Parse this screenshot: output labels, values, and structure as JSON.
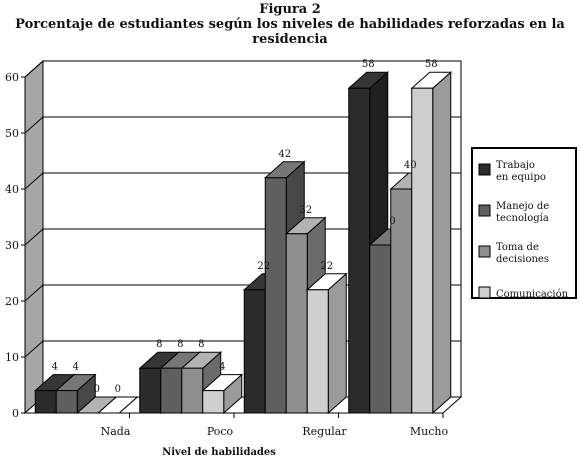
{
  "figure_label": "Figura 2",
  "chart_data": {
    "type": "bar",
    "title": "Porcentaje de estudiantes según los niveles de habilidades reforzadas en la residencia",
    "xlabel": "Nivel de habilidades",
    "ylabel": "",
    "categories": [
      "Nada",
      "Poco",
      "Regular",
      "Mucho"
    ],
    "series": [
      {
        "name": "Trabajo en equipo",
        "values": [
          4,
          8,
          22,
          58
        ],
        "color": "#2b2b2b"
      },
      {
        "name": "Manejo de tecnología",
        "values": [
          4,
          8,
          42,
          30
        ],
        "color": "#5f5f5f"
      },
      {
        "name": "Toma de decisiones",
        "values": [
          0,
          8,
          32,
          40
        ],
        "color": "#8f8f8f"
      },
      {
        "name": "Comunicación",
        "values": [
          0,
          4,
          22,
          58
        ],
        "color": "#cfcfcf"
      }
    ],
    "ylim": [
      0,
      60
    ],
    "yticks": [
      0,
      10,
      20,
      30,
      40,
      50,
      60
    ],
    "grid": true,
    "legend": "right",
    "three_d": true
  }
}
